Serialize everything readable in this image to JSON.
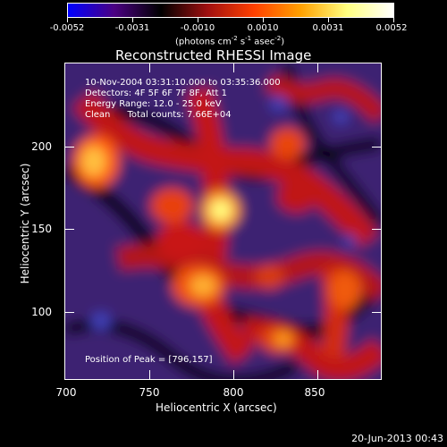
{
  "colorbar": {
    "tick_labels": [
      "-0.0052",
      "-0.0031",
      "-0.0010",
      "0.0010",
      "0.0031",
      "0.0052"
    ],
    "units_main": "(photons cm",
    "units_exp1": "-2",
    "units_mid1": " s",
    "units_exp2": "-1",
    "units_mid2": " asec",
    "units_exp3": "-2",
    "units_end": ")",
    "colors": [
      "#0000ff",
      "#4b0082",
      "#000000",
      "#a01010",
      "#ff4000",
      "#ffa000",
      "#ffff80",
      "#ffffff"
    ]
  },
  "title": "Reconstructed RHESSI Image",
  "info": {
    "time_range": "10-Nov-2004 03:31:10.000 to 03:35:36.000",
    "detectors": "Detectors: 4F 5F 6F 7F 8F, Att 1",
    "energy": "Energy Range: 12.0 - 25.0 keV",
    "clean": "Clean      Total counts: 7.66E+04",
    "peak": "Position of Peak = [796,157]"
  },
  "axes": {
    "xlabel": "Heliocentric X (arcsec)",
    "ylabel": "Heliocentric Y (arcsec)",
    "xticks": [
      "700",
      "750",
      "800",
      "850"
    ],
    "yticks": [
      "100",
      "150",
      "200"
    ]
  },
  "footer": {
    "date": "20-Jun-2013 00:43"
  }
}
